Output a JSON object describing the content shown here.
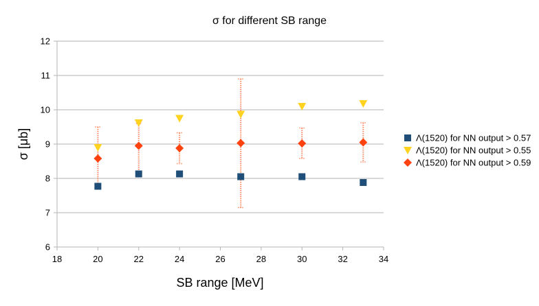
{
  "chart_data": {
    "type": "scatter",
    "title": "σ for different SB range",
    "xlabel": "SB range [MeV]",
    "ylabel": "σ [μb]",
    "xlim": [
      18,
      34
    ],
    "ylim": [
      6,
      12
    ],
    "xticks": [
      18,
      20,
      22,
      24,
      26,
      28,
      30,
      32,
      34
    ],
    "yticks": [
      6,
      7,
      8,
      9,
      10,
      11,
      12
    ],
    "grid": "horizontal",
    "legend_position": "right",
    "series": [
      {
        "name": "Λ(1520) for NN output > 0.57",
        "marker": "square",
        "color": "#1f4e79",
        "points": [
          {
            "x": 20,
            "y": 7.77,
            "err_lo": 7.7,
            "err_hi": 7.83
          },
          {
            "x": 22,
            "y": 8.13,
            "err_lo": 8.1,
            "err_hi": 8.17
          },
          {
            "x": 24,
            "y": 8.13,
            "err_lo": 8.1,
            "err_hi": 8.17
          },
          {
            "x": 27,
            "y": 8.05,
            "err_lo": 8.02,
            "err_hi": 8.08
          },
          {
            "x": 30,
            "y": 8.05,
            "err_lo": 8.02,
            "err_hi": 8.08
          },
          {
            "x": 33,
            "y": 7.88,
            "err_lo": 7.84,
            "err_hi": 7.93
          }
        ]
      },
      {
        "name": "Λ(1520) for NN output > 0.55",
        "marker": "triangle-down",
        "color": "#ffd320",
        "points": [
          {
            "x": 20,
            "y": 8.9
          },
          {
            "x": 22,
            "y": 9.62
          },
          {
            "x": 24,
            "y": 9.75
          },
          {
            "x": 27,
            "y": 9.87
          },
          {
            "x": 30,
            "y": 10.1
          },
          {
            "x": 33,
            "y": 10.18
          }
        ]
      },
      {
        "name": "Λ(1520) for NN output > 0.59",
        "marker": "diamond",
        "color": "#ff420e",
        "points": [
          {
            "x": 20,
            "y": 8.58,
            "err_lo": 7.85,
            "err_hi": 9.5
          },
          {
            "x": 22,
            "y": 8.95,
            "err_lo": 8.2,
            "err_hi": 9.6
          },
          {
            "x": 24,
            "y": 8.88,
            "err_lo": 8.43,
            "err_hi": 9.33
          },
          {
            "x": 27,
            "y": 9.03,
            "err_lo": 7.15,
            "err_hi": 10.9
          },
          {
            "x": 30,
            "y": 9.02,
            "err_lo": 8.58,
            "err_hi": 9.47
          },
          {
            "x": 33,
            "y": 9.05,
            "err_lo": 8.48,
            "err_hi": 9.62
          }
        ]
      }
    ]
  }
}
